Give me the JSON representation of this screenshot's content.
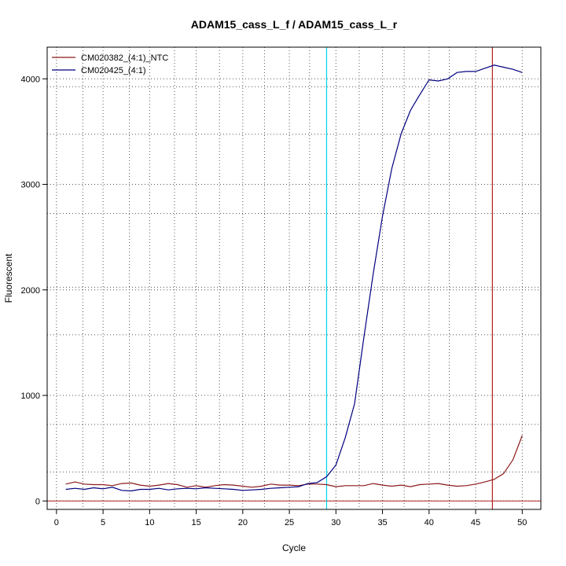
{
  "chart_data": {
    "type": "line",
    "title": "ADAM15_cass_L_f / ADAM15_cass_L_r",
    "xlabel": "Cycle",
    "ylabel": "Fluorescent",
    "xlim": [
      -1,
      52
    ],
    "ylim": [
      -80,
      4300
    ],
    "x_ticks": [
      0,
      5,
      10,
      15,
      20,
      25,
      30,
      35,
      40,
      45,
      50
    ],
    "y_ticks": [
      0,
      1000,
      2000,
      3000,
      4000
    ],
    "x_tick_labels": [
      "0",
      "5",
      "10",
      "15",
      "20",
      "25",
      "30",
      "35",
      "40",
      "45",
      "50"
    ],
    "y_tick_labels": [
      "0",
      "1000",
      "2000",
      "3000",
      "4000"
    ],
    "grid": true,
    "grid_x_dotted": [
      2.83,
      7.83,
      12.67,
      17.5,
      22.33,
      27.17,
      32.5,
      37.33,
      42.17
    ],
    "grid_y_dotted": [
      275,
      725,
      1575,
      2025,
      2725,
      3475,
      3925
    ],
    "legend_position": "top-left",
    "threshold_line": {
      "y": 0,
      "color": "#b22222"
    },
    "vertical_lines": [
      {
        "x": 29,
        "color": "#00d5e8"
      },
      {
        "x": 46.8,
        "color": "#b22222"
      }
    ],
    "x": [
      1,
      2,
      3,
      4,
      5,
      6,
      7,
      8,
      9,
      10,
      11,
      12,
      13,
      14,
      15,
      16,
      17,
      18,
      19,
      20,
      21,
      22,
      23,
      24,
      25,
      26,
      27,
      28,
      29,
      30,
      31,
      32,
      33,
      34,
      35,
      36,
      37,
      38,
      39,
      40,
      41,
      42,
      43,
      44,
      45,
      46,
      47,
      48,
      49,
      50
    ],
    "series": [
      {
        "name": "CM020382_(4:1)_NTC",
        "color": "#8b1a1a",
        "values": [
          160,
          180,
          160,
          155,
          155,
          145,
          165,
          170,
          150,
          140,
          150,
          165,
          155,
          130,
          145,
          130,
          145,
          155,
          150,
          140,
          130,
          140,
          160,
          150,
          150,
          145,
          160,
          160,
          155,
          135,
          145,
          145,
          145,
          165,
          150,
          140,
          150,
          135,
          155,
          160,
          165,
          150,
          140,
          145,
          160,
          180,
          205,
          260,
          390,
          620
        ]
      },
      {
        "name": "CM020425_(4:1)",
        "color": "#000080",
        "values": [
          110,
          120,
          110,
          125,
          115,
          130,
          100,
          95,
          110,
          110,
          120,
          105,
          115,
          120,
          115,
          125,
          120,
          115,
          110,
          100,
          105,
          110,
          120,
          125,
          130,
          135,
          165,
          175,
          230,
          340,
          600,
          920,
          1550,
          2150,
          2700,
          3150,
          3480,
          3700,
          3850,
          3990,
          3980,
          4000,
          4060,
          4070,
          4070,
          4100,
          4130,
          4110,
          4090,
          4060
        ]
      }
    ]
  }
}
